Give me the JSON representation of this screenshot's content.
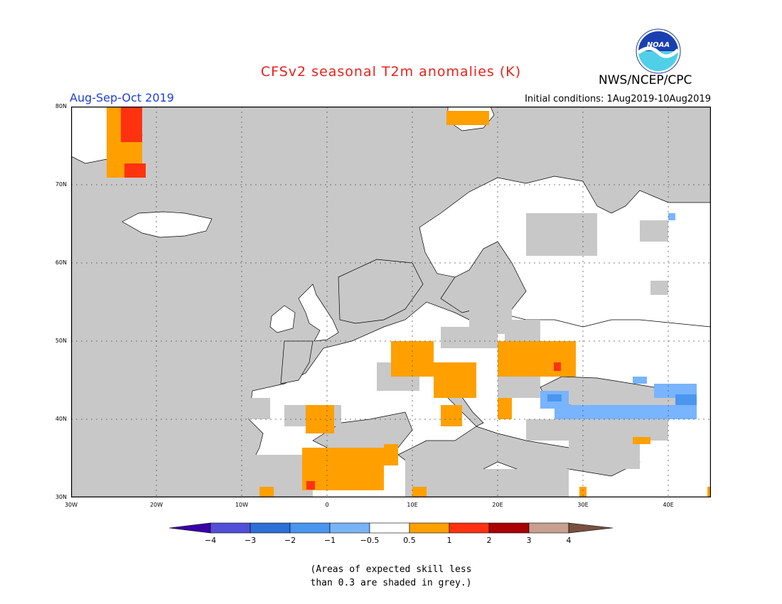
{
  "header": {
    "title": "CFSv2 seasonal T2m anomalies (K)",
    "period": "Aug-Sep-Oct 2019",
    "agency": "NWS/NCEP/CPC",
    "initial_conditions": "Initial conditions: 1Aug2019-10Aug2019",
    "logo_icon": "noaa-logo-icon",
    "logo_text": "NOAA"
  },
  "map": {
    "projection": "lat-lon",
    "lon_range": [
      -30,
      45
    ],
    "lat_range": [
      30,
      80
    ],
    "lat_labels": [
      "80N",
      "70N",
      "60N",
      "50N",
      "40N",
      "30N"
    ],
    "lon_labels": [
      "30W",
      "20W",
      "10W",
      "0",
      "10E",
      "20E",
      "30E",
      "40E"
    ],
    "grey_meaning": "low-skill",
    "colors": {
      "grey": "#c8c8c8",
      "ocean": "#c8c8c8",
      "land_neutral": "#ffffff",
      "warm_0_5_1": "#ffa000",
      "warm_1_2": "#ff3210",
      "cool_-1_-0_5": "#78b4ff",
      "cool_-0_5": "#4b96f0"
    },
    "anomaly_regions": [
      {
        "name": "greenland-east",
        "category": "0.5-1",
        "lon": [
          -25,
          -21
        ],
        "lat": [
          70,
          80
        ]
      },
      {
        "name": "greenland-east-strong",
        "category": "1-2",
        "lon": [
          -24,
          -22
        ],
        "lat": [
          77,
          80
        ]
      },
      {
        "name": "svalbard",
        "category": "0.5-1",
        "lon": [
          15,
          22
        ],
        "lat": [
          78,
          80
        ]
      },
      {
        "name": "alps-balkans",
        "category": "0.5-1",
        "lon": [
          9,
          19
        ],
        "lat": [
          41,
          49
        ]
      },
      {
        "name": "carpathian-romania",
        "category": "0.5-1",
        "lon": [
          20,
          30
        ],
        "lat": [
          45,
          49
        ]
      },
      {
        "name": "romania-strong",
        "category": "1-2",
        "lon": [
          27,
          28
        ],
        "lat": [
          46,
          47
        ]
      },
      {
        "name": "spain-east",
        "category": "0.5-1",
        "lon": [
          -2,
          1
        ],
        "lat": [
          38,
          41
        ]
      },
      {
        "name": "north-africa",
        "category": "0.5-1",
        "lon": [
          -3,
          8
        ],
        "lat": [
          30,
          36
        ]
      },
      {
        "name": "north-africa-strong",
        "category": "1-2",
        "lon": [
          -2,
          -1
        ],
        "lat": [
          31,
          32
        ]
      },
      {
        "name": "black-sea-north",
        "category": "-1--0.5",
        "lon": [
          27,
          43
        ],
        "lat": [
          40,
          44
        ]
      }
    ]
  },
  "colorbar": {
    "labels": [
      "-4",
      "-3",
      "-2",
      "-1",
      "-0.5",
      "0.5",
      "1",
      "2",
      "3",
      "4"
    ],
    "colors": [
      "#3a00a8",
      "#5050d8",
      "#2c6fd6",
      "#4896f0",
      "#78b4f5",
      "#ffffff",
      "#ffa000",
      "#ff3210",
      "#aa0000",
      "#c8a090",
      "#785040"
    ]
  },
  "footnote": {
    "line1": "(Areas of expected skill less",
    "line2": "than 0.3 are shaded in grey.)"
  }
}
